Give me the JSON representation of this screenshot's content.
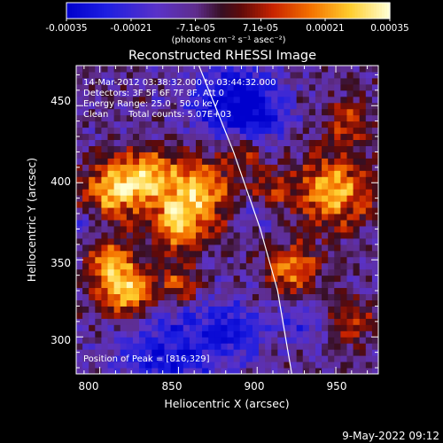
{
  "chart_data": {
    "type": "heatmap",
    "title": "Reconstructed RHESSI Image",
    "xlabel": "Heliocentric X (arcsec)",
    "ylabel": "Heliocentric Y (arcsec)",
    "xlim": [
      785,
      977
    ],
    "ylim": [
      276,
      476
    ],
    "x_ticks": [
      "800",
      "850",
      "900",
      "950"
    ],
    "x_tick_values": [
      800,
      850,
      900,
      950
    ],
    "y_ticks": [
      "300",
      "350",
      "400",
      "450"
    ],
    "y_tick_values": [
      300,
      350,
      400,
      450
    ],
    "colorbar": {
      "ticks": [
        "-0.00035",
        "-0.00021",
        "-7.1e-05",
        "7.1e-05",
        "0.00021",
        "0.00035"
      ],
      "tick_values": [
        -0.00035,
        -0.00021,
        -7.1e-05,
        7.1e-05,
        0.00021,
        0.00035
      ],
      "range": [
        -0.00035,
        0.00035
      ],
      "label": "(photons cm⁻² s⁻¹ asec⁻²)"
    },
    "annotations": [
      "14-Mar-2012 03:38:32.000 to 03:44:32.000",
      "Detectors: 3F 5F 6F 7F 8F, Att 0",
      "Energy Range: 25.0 - 50.0 keV",
      "Clean",
      "Total counts: 5.07E+03"
    ],
    "peak_label": "Position of Peak = [816,329]",
    "peak": [
      816,
      329
    ],
    "limb": [
      [
        863,
        476
      ],
      [
        885,
        420
      ],
      [
        902,
        370
      ],
      [
        913,
        330
      ],
      [
        922,
        276
      ]
    ],
    "hotspots": [
      {
        "x": 818,
        "y": 330,
        "sigma": 13,
        "amp": 1.0
      },
      {
        "x": 808,
        "y": 395,
        "sigma": 14,
        "amp": 0.85
      },
      {
        "x": 830,
        "y": 405,
        "sigma": 11,
        "amp": 0.75
      },
      {
        "x": 862,
        "y": 395,
        "sigma": 16,
        "amp": 0.85
      },
      {
        "x": 848,
        "y": 372,
        "sigma": 12,
        "amp": 0.7
      },
      {
        "x": 805,
        "y": 350,
        "sigma": 10,
        "amp": 0.6
      },
      {
        "x": 852,
        "y": 335,
        "sigma": 9,
        "amp": 0.55
      },
      {
        "x": 893,
        "y": 420,
        "sigma": 9,
        "amp": 0.5
      },
      {
        "x": 948,
        "y": 395,
        "sigma": 17,
        "amp": 0.85
      },
      {
        "x": 922,
        "y": 343,
        "sigma": 12,
        "amp": 0.7
      },
      {
        "x": 910,
        "y": 395,
        "sigma": 8,
        "amp": 0.45
      },
      {
        "x": 958,
        "y": 310,
        "sigma": 11,
        "amp": 0.5
      },
      {
        "x": 958,
        "y": 440,
        "sigma": 10,
        "amp": 0.45
      }
    ],
    "coldspots": [
      {
        "x": 880,
        "y": 455,
        "sigma": 18,
        "amp": 0.9
      },
      {
        "x": 900,
        "y": 445,
        "sigma": 15,
        "amp": 0.8
      },
      {
        "x": 842,
        "y": 290,
        "sigma": 24,
        "amp": 0.85
      },
      {
        "x": 885,
        "y": 305,
        "sigma": 14,
        "amp": 0.7
      },
      {
        "x": 930,
        "y": 310,
        "sigma": 12,
        "amp": 0.6
      },
      {
        "x": 792,
        "y": 372,
        "sigma": 8,
        "amp": 0.5
      },
      {
        "x": 900,
        "y": 380,
        "sigma": 7,
        "amp": 0.45
      }
    ]
  },
  "footer": {
    "timestamp": "9-May-2022 09:12"
  }
}
